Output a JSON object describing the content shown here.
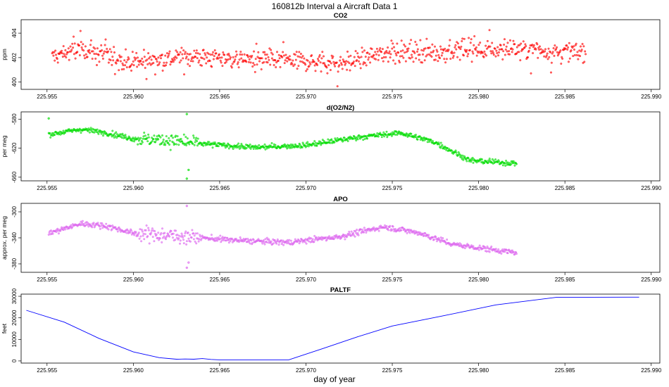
{
  "figure": {
    "title": "160812b   Interval a Aircraft Data 1",
    "xlabel": "day of year"
  },
  "colors": {
    "co2": "#ff0000",
    "o2n2": "#00dd00",
    "apo": "#dd66ee",
    "paltf": "#0000ff",
    "axis": "#000000"
  },
  "chart_data": [
    {
      "type": "scatter",
      "title": "CO2",
      "ylabel": "ppm",
      "xlim": [
        225.9535,
        225.9905
      ],
      "ylim": [
        399.4,
        405.1
      ],
      "xticks": [
        225.955,
        225.96,
        225.965,
        225.97,
        225.975,
        225.98,
        225.985,
        225.99
      ],
      "xtick_labels": [
        "225.955",
        "225.960",
        "225.965",
        "225.970",
        "225.975",
        "225.980",
        "225.985",
        "225.990"
      ],
      "yticks": [
        400,
        402,
        404
      ],
      "ytick_labels": [
        "400",
        "402",
        "404"
      ],
      "x_range": [
        225.9553,
        225.9862
      ],
      "trend": [
        [
          225.9553,
          402.1
        ],
        [
          225.957,
          402.7
        ],
        [
          225.96,
          401.6
        ],
        [
          225.963,
          402.1
        ],
        [
          225.966,
          401.9
        ],
        [
          225.969,
          401.8
        ],
        [
          225.972,
          401.5
        ],
        [
          225.975,
          402.5
        ],
        [
          225.978,
          402.5
        ],
        [
          225.982,
          402.7
        ],
        [
          225.9862,
          402.4
        ]
      ],
      "scatter_sd": 0.55,
      "n_points": 850
    },
    {
      "type": "scatter",
      "title": "d(O2/N2)",
      "ylabel": "per meg",
      "xlim": [
        225.9535,
        225.9905
      ],
      "ylim": [
        -665,
        -570
      ],
      "xticks": [
        225.955,
        225.96,
        225.965,
        225.97,
        225.975,
        225.98,
        225.985,
        225.99
      ],
      "xtick_labels": [
        "225.955",
        "225.960",
        "225.965",
        "225.970",
        "225.975",
        "225.980",
        "225.985",
        "225.990"
      ],
      "yticks": [
        -660,
        -620,
        -580
      ],
      "ytick_labels": [
        "-660",
        "-620",
        "-580"
      ],
      "x_range": [
        225.9551,
        225.9822
      ],
      "trend": [
        [
          225.9551,
          -601
        ],
        [
          225.957,
          -594
        ],
        [
          225.9585,
          -599
        ],
        [
          225.96,
          -607
        ],
        [
          225.962,
          -609
        ],
        [
          225.964,
          -614
        ],
        [
          225.967,
          -619
        ],
        [
          225.97,
          -616
        ],
        [
          225.973,
          -605
        ],
        [
          225.9755,
          -599
        ],
        [
          225.9775,
          -612
        ],
        [
          225.9795,
          -637
        ],
        [
          225.9822,
          -641
        ]
      ],
      "scatter_sd": 2.5,
      "n_points": 800,
      "outliers": [
        [
          225.9551,
          -579
        ],
        [
          225.9631,
          -573
        ],
        [
          225.9631,
          -662
        ],
        [
          225.9632,
          -650
        ]
      ]
    },
    {
      "type": "scatter",
      "title": "APO",
      "ylabel": "approx. per meg",
      "xlim": [
        225.9535,
        225.9905
      ],
      "ylim": [
        -393,
        -287
      ],
      "xticks": [
        225.955,
        225.96,
        225.965,
        225.97,
        225.975,
        225.98,
        225.985,
        225.99
      ],
      "xtick_labels": [
        "225.955",
        "225.960",
        "225.965",
        "225.970",
        "225.975",
        "225.980",
        "225.985",
        "225.990"
      ],
      "yticks": [
        -380,
        -340,
        -300
      ],
      "ytick_labels": [
        "-380",
        "-340",
        "-300"
      ],
      "x_range": [
        225.9551,
        225.9822
      ],
      "trend": [
        [
          225.9551,
          -333
        ],
        [
          225.957,
          -318
        ],
        [
          225.9585,
          -322
        ],
        [
          225.96,
          -333
        ],
        [
          225.963,
          -338
        ],
        [
          225.966,
          -344
        ],
        [
          225.969,
          -347
        ],
        [
          225.972,
          -338
        ],
        [
          225.9745,
          -323
        ],
        [
          225.9765,
          -332
        ],
        [
          225.9785,
          -350
        ],
        [
          225.9822,
          -363
        ]
      ],
      "scatter_sd": 3.0,
      "n_points": 800,
      "outliers": [
        [
          225.9631,
          -291
        ],
        [
          225.9631,
          -386
        ],
        [
          225.9632,
          -378
        ]
      ]
    },
    {
      "type": "line",
      "title": "PALTF",
      "ylabel": "feet",
      "xlim": [
        225.9535,
        225.9905
      ],
      "ylim": [
        -1000,
        31000
      ],
      "xticks": [
        225.955,
        225.96,
        225.965,
        225.97,
        225.975,
        225.98,
        225.985,
        225.99
      ],
      "xtick_labels": [
        "225.955",
        "225.960",
        "225.965",
        "225.970",
        "225.975",
        "225.980",
        "225.985",
        "225.990"
      ],
      "yticks": [
        0,
        10000,
        20000,
        30000
      ],
      "ytick_labels": [
        "0",
        "10000",
        "20000",
        "30000"
      ],
      "x": [
        225.9538,
        225.956,
        225.958,
        225.96,
        225.9615,
        225.9625,
        225.963,
        225.9635,
        225.964,
        225.9645,
        225.965,
        225.967,
        225.969,
        225.971,
        225.973,
        225.975,
        225.978,
        225.981,
        225.9845,
        225.9893
      ],
      "y": [
        23500,
        18000,
        10500,
        4200,
        1500,
        800,
        900,
        800,
        1100,
        700,
        500,
        500,
        500,
        5800,
        11200,
        16200,
        21000,
        26000,
        29500,
        29600
      ]
    }
  ]
}
